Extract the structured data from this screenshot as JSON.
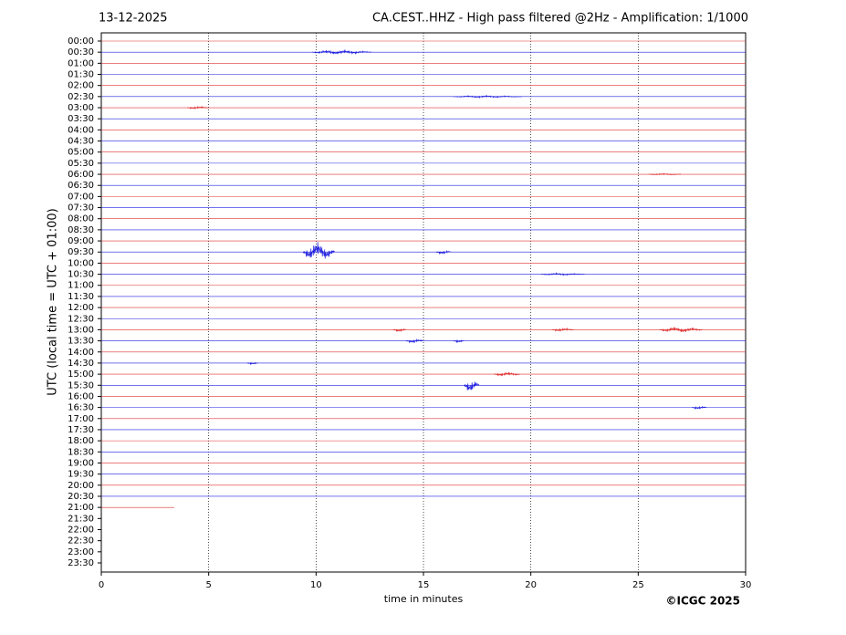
{
  "chart_data": {
    "type": "helicorder",
    "date": "13-12-2025",
    "title": "CA.CEST..HHZ - High pass filtered @2Hz - Amplification: 1/1000",
    "ylabel": "UTC (local time = UTC + 01:00)",
    "xlabel": "time in minutes",
    "copyright": "©ICGC 2025",
    "rows": [
      "00:00",
      "00:30",
      "01:00",
      "01:30",
      "02:00",
      "02:30",
      "03:00",
      "03:30",
      "04:00",
      "04:30",
      "05:00",
      "05:30",
      "06:00",
      "06:30",
      "07:00",
      "07:30",
      "08:00",
      "08:30",
      "09:00",
      "09:30",
      "10:00",
      "10:30",
      "11:00",
      "11:30",
      "12:00",
      "12:30",
      "13:00",
      "13:30",
      "14:00",
      "14:30",
      "15:00",
      "15:30",
      "16:00",
      "16:30",
      "17:00",
      "17:30",
      "18:00",
      "18:30",
      "19:00",
      "19:30",
      "20:00",
      "20:30",
      "21:00",
      "21:30",
      "22:00",
      "22:30",
      "23:00",
      "23:30"
    ],
    "colors": [
      "#e03030",
      "#2020e0"
    ],
    "end_row": "21:00",
    "end_x": 3.4,
    "xlim": [
      0,
      30
    ],
    "xticks": [
      0,
      5,
      10,
      15,
      20,
      25,
      30
    ],
    "grid": true,
    "events": [
      {
        "row": "00:30",
        "x": [
          9.8,
          12.6
        ],
        "amplitude": 0.15
      },
      {
        "row": "02:30",
        "x": [
          16.4,
          19.6
        ],
        "amplitude": 0.08
      },
      {
        "row": "03:00",
        "x": [
          4.0,
          5.0
        ],
        "amplitude": 0.1
      },
      {
        "row": "06:00",
        "x": [
          25.5,
          27.0
        ],
        "amplitude": 0.06
      },
      {
        "row": "09:30",
        "x": [
          9.4,
          10.9
        ],
        "amplitude": 0.7
      },
      {
        "row": "09:30",
        "x": [
          15.6,
          16.3
        ],
        "amplitude": 0.15
      },
      {
        "row": "10:30",
        "x": [
          20.5,
          22.5
        ],
        "amplitude": 0.08
      },
      {
        "row": "13:00",
        "x": [
          13.6,
          14.2
        ],
        "amplitude": 0.15
      },
      {
        "row": "13:00",
        "x": [
          21.0,
          22.0
        ],
        "amplitude": 0.12
      },
      {
        "row": "13:00",
        "x": [
          26.0,
          28.0
        ],
        "amplitude": 0.2
      },
      {
        "row": "13:30",
        "x": [
          14.2,
          15.0
        ],
        "amplitude": 0.15
      },
      {
        "row": "13:30",
        "x": [
          16.4,
          16.9
        ],
        "amplitude": 0.12
      },
      {
        "row": "14:30",
        "x": [
          6.8,
          7.3
        ],
        "amplitude": 0.1
      },
      {
        "row": "15:00",
        "x": [
          18.3,
          19.5
        ],
        "amplitude": 0.15
      },
      {
        "row": "15:30",
        "x": [
          16.9,
          17.6
        ],
        "amplitude": 0.5
      },
      {
        "row": "16:30",
        "x": [
          27.5,
          28.2
        ],
        "amplitude": 0.12
      }
    ]
  }
}
